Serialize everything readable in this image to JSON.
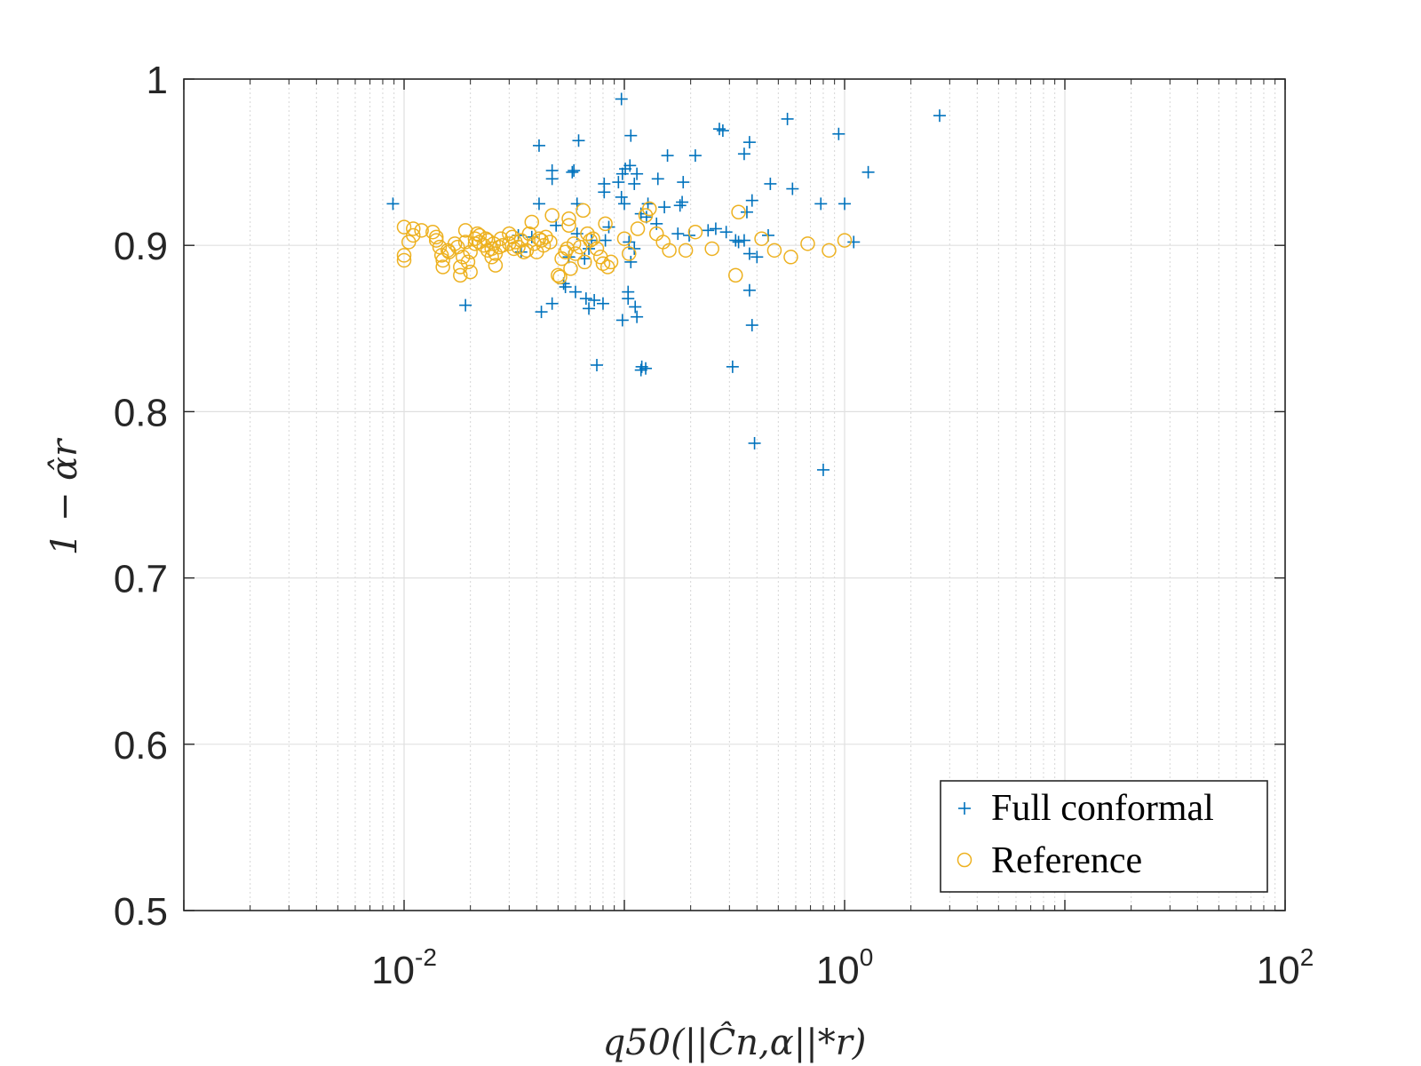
{
  "chart_data": {
    "type": "scatter",
    "xscale": "log",
    "xlim": [
      0.001,
      100
    ],
    "ylim": [
      0.5,
      1
    ],
    "grid": true,
    "minor_grid_x": true,
    "xlabel": "q50(||Ĉn,α||*r)",
    "ylabel": "1 − α̂r",
    "xticks": [
      {
        "value": 0.01,
        "base": "10",
        "exp": "-2"
      },
      {
        "value": 1,
        "base": "10",
        "exp": "0"
      },
      {
        "value": 100,
        "base": "10",
        "exp": "2"
      }
    ],
    "yticks": [
      {
        "value": 0.5,
        "label": "0.5"
      },
      {
        "value": 0.6,
        "label": "0.6"
      },
      {
        "value": 0.7,
        "label": "0.7"
      },
      {
        "value": 0.8,
        "label": "0.8"
      },
      {
        "value": 0.9,
        "label": "0.9"
      },
      {
        "value": 1.0,
        "label": "1"
      }
    ],
    "legend_position": "bottom-right",
    "series": [
      {
        "name": "Full conformal",
        "marker": "plus",
        "color": "#0072BD",
        "points": [
          [
            0.0089,
            0.925
          ],
          [
            0.097,
            0.988
          ],
          [
            0.041,
            0.96
          ],
          [
            0.062,
            0.963
          ],
          [
            0.107,
            0.966
          ],
          [
            0.28,
            0.969
          ],
          [
            0.27,
            0.97
          ],
          [
            0.55,
            0.976
          ],
          [
            2.7,
            0.978
          ],
          [
            0.94,
            0.967
          ],
          [
            0.047,
            0.945
          ],
          [
            0.047,
            0.94
          ],
          [
            0.059,
            0.945
          ],
          [
            0.058,
            0.944
          ],
          [
            0.101,
            0.946
          ],
          [
            0.106,
            0.948
          ],
          [
            0.098,
            0.943
          ],
          [
            0.094,
            0.938
          ],
          [
            0.114,
            0.943
          ],
          [
            0.111,
            0.937
          ],
          [
            0.081,
            0.937
          ],
          [
            0.081,
            0.932
          ],
          [
            0.097,
            0.929
          ],
          [
            0.157,
            0.954
          ],
          [
            0.21,
            0.954
          ],
          [
            0.185,
            0.938
          ],
          [
            0.142,
            0.94
          ],
          [
            0.35,
            0.955
          ],
          [
            0.37,
            0.962
          ],
          [
            0.46,
            0.937
          ],
          [
            0.58,
            0.934
          ],
          [
            1.28,
            0.944
          ],
          [
            0.38,
            0.927
          ],
          [
            0.36,
            0.92
          ],
          [
            0.183,
            0.926
          ],
          [
            0.179,
            0.924
          ],
          [
            0.1,
            0.925
          ],
          [
            0.128,
            0.925
          ],
          [
            0.041,
            0.925
          ],
          [
            0.061,
            0.925
          ],
          [
            0.119,
            0.919
          ],
          [
            0.126,
            0.917
          ],
          [
            0.152,
            0.923
          ],
          [
            0.14,
            0.913
          ],
          [
            0.085,
            0.911
          ],
          [
            0.049,
            0.912
          ],
          [
            0.082,
            0.903
          ],
          [
            0.071,
            0.903
          ],
          [
            0.069,
            0.898
          ],
          [
            0.105,
            0.902
          ],
          [
            0.111,
            0.898
          ],
          [
            0.175,
            0.907
          ],
          [
            0.197,
            0.906
          ],
          [
            0.24,
            0.909
          ],
          [
            0.26,
            0.91
          ],
          [
            0.33,
            0.902
          ],
          [
            0.37,
            0.895
          ],
          [
            0.4,
            0.893
          ],
          [
            0.35,
            0.903
          ],
          [
            0.45,
            0.906
          ],
          [
            0.78,
            0.925
          ],
          [
            1.0,
            0.925
          ],
          [
            1.1,
            0.902
          ],
          [
            0.034,
            0.896
          ],
          [
            0.056,
            0.893
          ],
          [
            0.066,
            0.892
          ],
          [
            0.107,
            0.89
          ],
          [
            0.033,
            0.906
          ],
          [
            0.038,
            0.905
          ],
          [
            0.061,
            0.907
          ],
          [
            0.053,
            0.877
          ],
          [
            0.054,
            0.875
          ],
          [
            0.06,
            0.872
          ],
          [
            0.067,
            0.868
          ],
          [
            0.073,
            0.867
          ],
          [
            0.08,
            0.865
          ],
          [
            0.104,
            0.868
          ],
          [
            0.104,
            0.872
          ],
          [
            0.112,
            0.863
          ],
          [
            0.114,
            0.857
          ],
          [
            0.098,
            0.855
          ],
          [
            0.069,
            0.862
          ],
          [
            0.047,
            0.865
          ],
          [
            0.042,
            0.86
          ],
          [
            0.019,
            0.864
          ],
          [
            0.37,
            0.873
          ],
          [
            0.38,
            0.852
          ],
          [
            0.075,
            0.828
          ],
          [
            0.12,
            0.827
          ],
          [
            0.119,
            0.825
          ],
          [
            0.125,
            0.826
          ],
          [
            0.31,
            0.827
          ],
          [
            0.39,
            0.781
          ],
          [
            0.8,
            0.765
          ],
          [
            0.29,
            0.908
          ],
          [
            0.32,
            0.903
          ]
        ]
      },
      {
        "name": "Reference",
        "marker": "circle",
        "color": "#EDB120",
        "points": [
          [
            0.01,
            0.911
          ],
          [
            0.01,
            0.894
          ],
          [
            0.01,
            0.891
          ],
          [
            0.0105,
            0.902
          ],
          [
            0.011,
            0.906
          ],
          [
            0.011,
            0.91
          ],
          [
            0.012,
            0.909
          ],
          [
            0.0135,
            0.908
          ],
          [
            0.014,
            0.903
          ],
          [
            0.014,
            0.905
          ],
          [
            0.0145,
            0.899
          ],
          [
            0.0148,
            0.894
          ],
          [
            0.015,
            0.887
          ],
          [
            0.015,
            0.891
          ],
          [
            0.0158,
            0.897
          ],
          [
            0.016,
            0.896
          ],
          [
            0.017,
            0.901
          ],
          [
            0.0175,
            0.899
          ],
          [
            0.018,
            0.882
          ],
          [
            0.018,
            0.887
          ],
          [
            0.0185,
            0.893
          ],
          [
            0.019,
            0.902
          ],
          [
            0.019,
            0.909
          ],
          [
            0.0195,
            0.89
          ],
          [
            0.02,
            0.884
          ],
          [
            0.02,
            0.896
          ],
          [
            0.021,
            0.904
          ],
          [
            0.021,
            0.901
          ],
          [
            0.0215,
            0.907
          ],
          [
            0.022,
            0.906
          ],
          [
            0.022,
            0.902
          ],
          [
            0.023,
            0.9
          ],
          [
            0.0235,
            0.904
          ],
          [
            0.024,
            0.897
          ],
          [
            0.024,
            0.903
          ],
          [
            0.025,
            0.893
          ],
          [
            0.025,
            0.898
          ],
          [
            0.0255,
            0.901
          ],
          [
            0.026,
            0.888
          ],
          [
            0.026,
            0.895
          ],
          [
            0.027,
            0.899
          ],
          [
            0.0275,
            0.904
          ],
          [
            0.028,
            0.9
          ],
          [
            0.03,
            0.901
          ],
          [
            0.03,
            0.907
          ],
          [
            0.031,
            0.905
          ],
          [
            0.0315,
            0.898
          ],
          [
            0.032,
            0.902
          ],
          [
            0.033,
            0.899
          ],
          [
            0.034,
            0.903
          ],
          [
            0.035,
            0.896
          ],
          [
            0.036,
            0.897
          ],
          [
            0.037,
            0.907
          ],
          [
            0.038,
            0.914
          ],
          [
            0.039,
            0.901
          ],
          [
            0.04,
            0.896
          ],
          [
            0.041,
            0.904
          ],
          [
            0.042,
            0.903
          ],
          [
            0.043,
            0.9
          ],
          [
            0.044,
            0.905
          ],
          [
            0.046,
            0.902
          ],
          [
            0.047,
            0.918
          ],
          [
            0.05,
            0.882
          ],
          [
            0.051,
            0.881
          ],
          [
            0.052,
            0.892
          ],
          [
            0.054,
            0.896
          ],
          [
            0.055,
            0.898
          ],
          [
            0.056,
            0.912
          ],
          [
            0.056,
            0.916
          ],
          [
            0.057,
            0.886
          ],
          [
            0.059,
            0.901
          ],
          [
            0.06,
            0.895
          ],
          [
            0.063,
            0.899
          ],
          [
            0.065,
            0.921
          ],
          [
            0.066,
            0.89
          ],
          [
            0.068,
            0.907
          ],
          [
            0.07,
            0.903
          ],
          [
            0.072,
            0.904
          ],
          [
            0.075,
            0.898
          ],
          [
            0.078,
            0.893
          ],
          [
            0.08,
            0.889
          ],
          [
            0.082,
            0.913
          ],
          [
            0.084,
            0.887
          ],
          [
            0.087,
            0.89
          ],
          [
            0.1,
            0.904
          ],
          [
            0.105,
            0.895
          ],
          [
            0.115,
            0.91
          ],
          [
            0.125,
            0.918
          ],
          [
            0.13,
            0.922
          ],
          [
            0.14,
            0.907
          ],
          [
            0.15,
            0.902
          ],
          [
            0.16,
            0.897
          ],
          [
            0.19,
            0.897
          ],
          [
            0.21,
            0.908
          ],
          [
            0.25,
            0.898
          ],
          [
            0.32,
            0.882
          ],
          [
            0.33,
            0.92
          ],
          [
            0.42,
            0.904
          ],
          [
            0.48,
            0.897
          ],
          [
            0.57,
            0.893
          ],
          [
            0.68,
            0.901
          ],
          [
            0.85,
            0.897
          ],
          [
            1.0,
            0.903
          ]
        ]
      }
    ]
  }
}
